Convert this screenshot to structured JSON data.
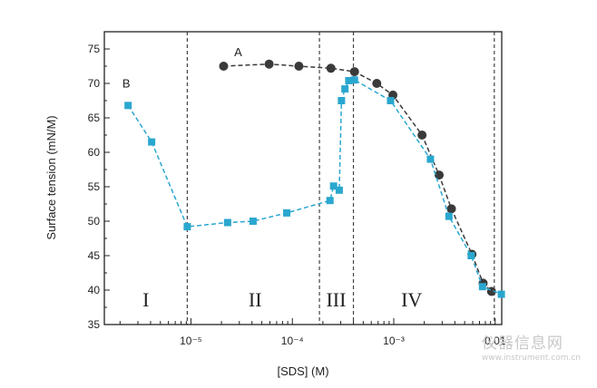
{
  "chart_data": {
    "type": "line",
    "xlabel": "[SDS] (M)",
    "ylabel": "Surface tension (mN/M)",
    "xscale": "log",
    "xlim": [
      1.4e-06,
      0.0116
    ],
    "ylim": [
      35,
      77.5
    ],
    "y_ticks": [
      35,
      40,
      45,
      50,
      55,
      60,
      65,
      70,
      75
    ],
    "x_tick_values": [
      1e-05,
      0.0001,
      0.001,
      0.01
    ],
    "x_tick_labels": [
      "10⁻⁵",
      "10⁻⁴",
      "10⁻³",
      "0.01"
    ],
    "region_boundaries": [
      9.2e-06,
      0.000185,
      0.0004,
      0.0098
    ],
    "regions": [
      {
        "label": "I",
        "x": 3.6e-06
      },
      {
        "label": "II",
        "x": 4.3e-05
      },
      {
        "label": "III",
        "x": 0.00027
      },
      {
        "label": "IV",
        "x": 0.0015
      }
    ],
    "series": [
      {
        "name": "A",
        "color": "#3a3a3a",
        "marker": "circle",
        "x": [
          2.1e-05,
          5.9e-05,
          0.000116,
          0.00024,
          0.00041,
          0.00068,
          0.00098,
          0.0019,
          0.0028,
          0.0037,
          0.0059,
          0.0076,
          0.0092
        ],
        "y": [
          72.5,
          72.8,
          72.5,
          72.2,
          71.7,
          70.0,
          68.3,
          62.5,
          56.7,
          51.8,
          45.2,
          41.0,
          39.8
        ]
      },
      {
        "name": "B",
        "color": "#2aa7cf",
        "marker": "square",
        "x": [
          2.4e-06,
          4.1e-06,
          9.2e-06,
          2.3e-05,
          4.1e-05,
          8.8e-05,
          0.000235,
          0.000255,
          0.00029,
          0.000305,
          0.00033,
          0.00036,
          0.00041,
          0.00093,
          0.0023,
          0.0035,
          0.0058,
          0.0075,
          0.0115
        ],
        "y": [
          66.8,
          61.5,
          49.2,
          49.8,
          50.0,
          51.2,
          53.0,
          55.1,
          54.5,
          67.5,
          69.2,
          70.4,
          70.5,
          67.5,
          59.0,
          50.7,
          45.0,
          40.5,
          39.4
        ]
      }
    ]
  },
  "watermark": {
    "name": "仪器信息网",
    "url": "www.instrument.com.cn"
  }
}
